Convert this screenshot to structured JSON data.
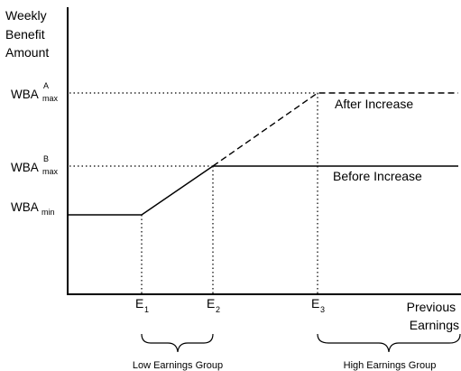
{
  "y_axis_label": [
    "Weekly",
    "Benefit",
    "Amount"
  ],
  "x_axis_label": [
    "Previous",
    "Earnings"
  ],
  "levels": {
    "wba_max_a": {
      "base": "WBA",
      "sup": "A",
      "sub": "max"
    },
    "wba_max_b": {
      "base": "WBA",
      "sup": "B",
      "sub": "max"
    },
    "wba_min": {
      "base": "WBA",
      "sub": "min"
    }
  },
  "earnings_points": [
    {
      "base": "E",
      "sub": "1"
    },
    {
      "base": "E",
      "sub": "2"
    },
    {
      "base": "E",
      "sub": "3"
    }
  ],
  "lines": {
    "after": "After Increase",
    "before": "Before Increase"
  },
  "groups": {
    "low": "Low Earnings Group",
    "high": "High Earnings Group"
  },
  "colors": {
    "ink": "#000000",
    "background": "#ffffff"
  }
}
